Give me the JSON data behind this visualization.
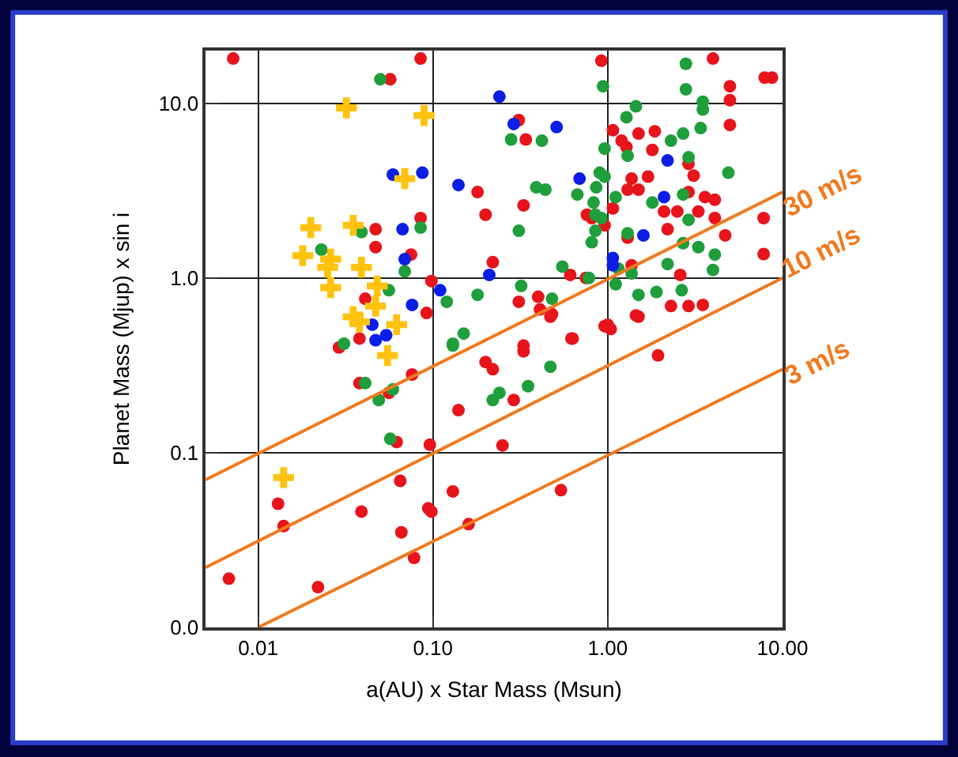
{
  "chart_data": {
    "type": "scatter",
    "xlabel": "a(AU) x Star Mass (Msun)",
    "ylabel": "Planet Mass (Mjup) x sin i",
    "log": "xy",
    "grid": true,
    "legend": false,
    "marker": "circle",
    "xlim": [
      0.005,
      10
    ],
    "ylim": [
      0.01,
      20
    ],
    "xticks": [
      {
        "value": 0.01,
        "label": "0.01"
      },
      {
        "value": 0.1,
        "label": "0.10"
      },
      {
        "value": 1,
        "label": "1.00"
      },
      {
        "value": 10,
        "label": "10.00"
      }
    ],
    "yticks": [
      {
        "value": 0.01,
        "label": "0.0"
      },
      {
        "value": 0.1,
        "label": "0.1"
      },
      {
        "value": 1,
        "label": "1.0"
      },
      {
        "value": 10,
        "label": "10.0"
      }
    ],
    "series": [
      {
        "color": "#e8141b",
        "x": [
          0.0072,
          0.085,
          0.057,
          0.047,
          0.047,
          0.085,
          0.075,
          0.098,
          0.041,
          0.092,
          0.038,
          0.029,
          0.038,
          0.056,
          0.076,
          0.062,
          0.096,
          0.14,
          0.2,
          0.22,
          0.25,
          0.013,
          0.014,
          0.039,
          0.065,
          0.066,
          0.078,
          0.094,
          0.098,
          0.13,
          0.16,
          0.0068,
          0.022,
          0.33,
          0.62,
          0.96,
          1.04,
          1.94,
          0.29,
          0.54,
          0.47,
          1.5,
          4.0,
          0.92,
          5.0,
          5.0,
          7.9,
          0.31,
          0.34,
          1.07,
          1.5,
          1.86,
          1.2,
          1.28,
          5.0,
          1.8,
          2.9,
          3.1,
          1.37,
          1.7,
          1.3,
          1.5,
          2.9,
          3.6,
          4.1,
          0.18,
          0.33,
          0.2,
          1.07,
          0.76,
          0.81,
          0.96,
          2.1,
          2.5,
          3.3,
          4.1,
          7.8,
          1.3,
          2.2,
          4.7,
          7.8,
          0.22,
          0.61,
          0.75,
          1.37,
          2.6,
          0.4,
          0.31,
          0.41,
          0.48,
          2.3,
          2.9,
          3.5,
          1.45,
          1.0,
          0.63,
          0.33,
          8.7
        ],
        "values": [
          18,
          18,
          13.7,
          1.9,
          1.5,
          2.2,
          1.36,
          0.96,
          0.76,
          0.63,
          0.45,
          0.4,
          0.25,
          0.22,
          0.28,
          0.115,
          0.111,
          0.175,
          0.33,
          0.3,
          0.11,
          0.051,
          0.038,
          0.046,
          0.069,
          0.035,
          0.025,
          0.048,
          0.046,
          0.06,
          0.039,
          0.019,
          0.017,
          0.38,
          0.45,
          0.53,
          0.51,
          0.36,
          0.2,
          0.061,
          0.6,
          0.6,
          18,
          17.5,
          12.5,
          10.4,
          14,
          8.0,
          6.2,
          7.0,
          6.7,
          6.9,
          6.1,
          5.6,
          7.5,
          5.4,
          4.5,
          3.85,
          3.7,
          3.8,
          3.2,
          3.2,
          3.1,
          2.9,
          2.8,
          3.1,
          2.6,
          2.3,
          2.5,
          2.3,
          2.2,
          2.0,
          2.4,
          2.4,
          2.4,
          2.2,
          2.2,
          1.7,
          1.9,
          1.75,
          1.37,
          1.23,
          1.04,
          1.0,
          1.18,
          1.04,
          0.78,
          0.73,
          0.66,
          0.62,
          0.69,
          0.69,
          0.7,
          0.61,
          0.54,
          0.45,
          0.41,
          14
        ]
      },
      {
        "color": "#1f9e3c",
        "x": [
          0.05,
          0.085,
          0.039,
          0.023,
          0.069,
          0.056,
          0.12,
          0.031,
          0.15,
          0.13,
          0.041,
          0.049,
          0.059,
          0.057,
          0.13,
          0.22,
          0.24,
          0.35,
          0.47,
          2.8,
          2.8,
          0.94,
          3.5,
          3.5,
          1.45,
          1.28,
          0.28,
          0.42,
          0.96,
          1.3,
          2.7,
          3.4,
          2.3,
          2.9,
          0.9,
          0.96,
          4.9,
          0.39,
          0.44,
          0.86,
          0.67,
          2.7,
          1.11,
          0.83,
          1.8,
          0.85,
          0.92,
          2.9,
          0.31,
          0.85,
          1.3,
          0.81,
          2.7,
          3.3,
          4.1,
          2.2,
          4.0,
          0.55,
          1.15,
          1.37,
          0.78,
          1.11,
          0.32,
          0.48,
          1.5,
          1.9,
          2.65,
          0.18
        ],
        "values": [
          13.7,
          1.94,
          1.83,
          1.45,
          1.09,
          0.85,
          0.73,
          0.42,
          0.48,
          0.42,
          0.25,
          0.2,
          0.23,
          0.12,
          0.41,
          0.2,
          0.22,
          0.24,
          0.31,
          16.8,
          12,
          12.5,
          10.2,
          9.2,
          9.6,
          8.3,
          6.2,
          6.1,
          5.5,
          5.0,
          6.7,
          7.2,
          6.1,
          4.9,
          4.0,
          3.8,
          4.0,
          3.3,
          3.2,
          3.3,
          3.0,
          3.0,
          2.9,
          2.7,
          2.7,
          2.3,
          2.2,
          2.15,
          1.86,
          1.86,
          1.8,
          1.6,
          1.58,
          1.5,
          1.36,
          1.2,
          1.11,
          1.16,
          1.13,
          1.06,
          1.0,
          0.92,
          0.9,
          0.76,
          0.8,
          0.83,
          0.85,
          0.8
        ]
      },
      {
        "color": "#0a1ee6",
        "x": [
          0.059,
          0.087,
          0.14,
          0.067,
          0.069,
          0.11,
          0.076,
          0.045,
          0.054,
          0.047,
          0.24,
          0.29,
          0.51,
          2.2,
          0.69,
          2.1,
          1.6,
          1.07,
          1.07,
          0.21
        ],
        "values": [
          3.9,
          4.0,
          3.4,
          1.9,
          1.28,
          0.85,
          0.7,
          0.54,
          0.47,
          0.44,
          10.9,
          7.6,
          7.3,
          4.7,
          3.7,
          2.9,
          1.75,
          1.3,
          1.18,
          1.04
        ]
      },
      {
        "color": "#ffc20e",
        "marker": "cross",
        "x": [
          0.032,
          0.089,
          0.069,
          0.02,
          0.035,
          0.018,
          0.026,
          0.025,
          0.039,
          0.026,
          0.048,
          0.047,
          0.035,
          0.038,
          0.062,
          0.055,
          0.014
        ],
        "values": [
          9.4,
          8.5,
          3.7,
          1.94,
          2.0,
          1.34,
          1.28,
          1.15,
          1.15,
          0.88,
          0.9,
          0.69,
          0.6,
          0.56,
          0.54,
          0.36,
          0.072
        ]
      },
      {
        "type": "line",
        "name": "30 m/s",
        "color": "#f07a1e",
        "marker": "none",
        "x": [
          0.005,
          10
        ],
        "values": [
          0.07,
          3.1
        ]
      },
      {
        "type": "line",
        "name": "10 m/s",
        "color": "#f07a1e",
        "marker": "none",
        "x": [
          0.005,
          10
        ],
        "values": [
          0.022,
          1.0
        ]
      },
      {
        "type": "line",
        "name": "3 m/s",
        "color": "#f07a1e",
        "marker": "none",
        "x": [
          0.01,
          10
        ],
        "values": [
          0.01,
          0.3
        ]
      }
    ]
  }
}
